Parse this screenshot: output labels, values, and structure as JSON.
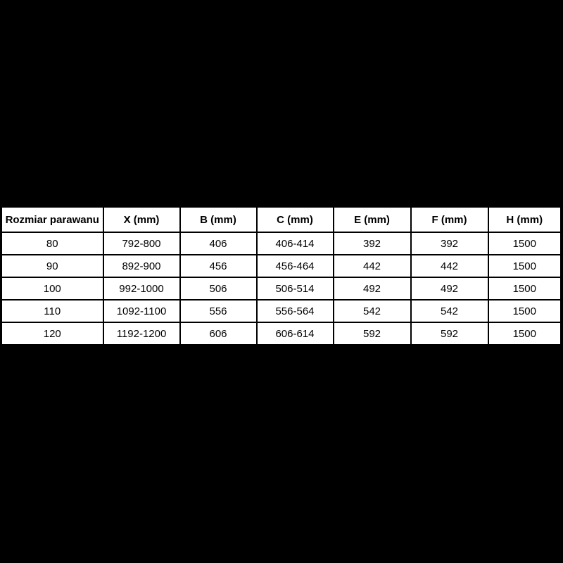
{
  "page": {
    "background_color": "#000000"
  },
  "chart_data": {
    "type": "table",
    "title": "",
    "columns": [
      "Rozmiar parawanu",
      "X (mm)",
      "B (mm)",
      "C (mm)",
      "E (mm)",
      "F (mm)",
      "H (mm)"
    ],
    "rows": [
      [
        "80",
        "792-800",
        "406",
        "406-414",
        "392",
        "392",
        "1500"
      ],
      [
        "90",
        "892-900",
        "456",
        "456-464",
        "442",
        "442",
        "1500"
      ],
      [
        "100",
        "992-1000",
        "506",
        "506-514",
        "492",
        "492",
        "1500"
      ],
      [
        "110",
        "1092-1100",
        "556",
        "556-564",
        "542",
        "542",
        "1500"
      ],
      [
        "120",
        "1192-1200",
        "606",
        "606-614",
        "592",
        "592",
        "1500"
      ]
    ],
    "layout": {
      "cell_background": "#ffffff",
      "border_color": "#000000",
      "text_color": "#000000",
      "page_background": "#000000",
      "header_bold": true
    }
  }
}
